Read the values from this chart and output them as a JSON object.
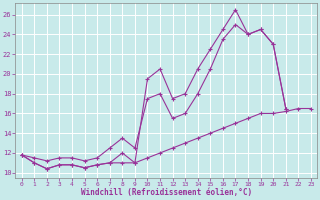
{
  "background_color": "#c8eaea",
  "grid_color": "#ffffff",
  "line_color": "#993399",
  "xlabel": "Windchill (Refroidissement éolien,°C)",
  "xlim": [
    -0.5,
    23.5
  ],
  "ylim": [
    9.5,
    27.2
  ],
  "xticks": [
    0,
    1,
    2,
    3,
    4,
    5,
    6,
    7,
    8,
    9,
    10,
    11,
    12,
    13,
    14,
    15,
    16,
    17,
    18,
    19,
    20,
    21,
    22,
    23
  ],
  "yticks": [
    10,
    12,
    14,
    16,
    18,
    20,
    22,
    24,
    26
  ],
  "line1_x": [
    0,
    1,
    2,
    3,
    4,
    5,
    6,
    7,
    8,
    9,
    10,
    11,
    12,
    13,
    14,
    15,
    16,
    17,
    18,
    19,
    20,
    21
  ],
  "line1_y": [
    11.8,
    11.0,
    10.4,
    10.8,
    10.8,
    10.5,
    10.8,
    11.0,
    12.0,
    11.0,
    19.5,
    20.5,
    17.5,
    18.0,
    20.5,
    22.5,
    24.5,
    26.5,
    24.0,
    24.5,
    23.0,
    16.5
  ],
  "line2_x": [
    0,
    1,
    2,
    3,
    4,
    5,
    6,
    7,
    8,
    9,
    10,
    11,
    12,
    13,
    14,
    15,
    16,
    17,
    18,
    19,
    20,
    21
  ],
  "line2_y": [
    11.8,
    11.5,
    11.2,
    11.5,
    11.5,
    11.2,
    11.5,
    12.5,
    13.5,
    12.5,
    17.5,
    18.0,
    15.5,
    16.0,
    18.0,
    20.5,
    23.5,
    25.0,
    24.0,
    24.5,
    23.0,
    16.5
  ],
  "line3_x": [
    0,
    1,
    2,
    3,
    4,
    5,
    6,
    7,
    8,
    9,
    10,
    11,
    12,
    13,
    14,
    15,
    16,
    17,
    18,
    19,
    20,
    21,
    22,
    23
  ],
  "line3_y": [
    11.8,
    11.0,
    10.4,
    10.8,
    10.8,
    10.5,
    10.8,
    11.0,
    11.0,
    11.0,
    11.5,
    12.0,
    12.5,
    13.0,
    13.5,
    14.0,
    14.5,
    15.0,
    15.5,
    16.0,
    16.0,
    16.2,
    16.5,
    16.5
  ]
}
